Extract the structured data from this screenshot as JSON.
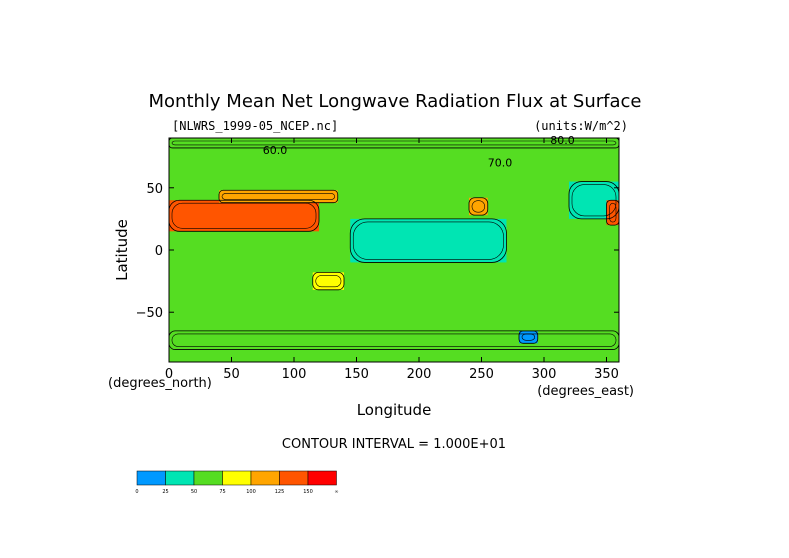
{
  "chart_data": {
    "type": "heatmap",
    "title": "Monthly Mean Net Longwave Radiation Flux at Surface",
    "file_label": "[NLWRS_1999-05_NCEP.nc]",
    "units_label": "(units:W/m^2)",
    "xlabel": "Longitude",
    "ylabel": "Latitude",
    "x_unit_label": "(degrees_east)",
    "y_unit_label": "(degrees_north)",
    "xlim": [
      0,
      360
    ],
    "ylim": [
      -90,
      90
    ],
    "x_ticks": [
      0,
      50,
      100,
      150,
      200,
      250,
      300,
      350
    ],
    "y_ticks": [
      50,
      0,
      -50
    ],
    "y_tick_labels": [
      "50",
      "0",
      "−50"
    ],
    "contour_note": "CONTOUR INTERVAL = 1.000E+01",
    "contour_labels": [
      "60.0",
      "80.0",
      "70.0"
    ],
    "colorbar": {
      "colors": [
        "#0099ff",
        "#00e5b3",
        "#55dd22",
        "#ffff00",
        "#ffa500",
        "#ff5500",
        "#ff0000"
      ],
      "labels": [
        "0",
        "25",
        "50",
        "75",
        "100",
        "125",
        "150",
        "∞"
      ]
    },
    "regions": [
      {
        "lon_min": 0,
        "lon_max": 360,
        "lat_min": -90,
        "lat_max": 90,
        "value": 55
      },
      {
        "lon_min": 145,
        "lon_max": 270,
        "lat_min": -10,
        "lat_max": 25,
        "value": 35
      },
      {
        "lon_min": 320,
        "lon_max": 360,
        "lat_min": 25,
        "lat_max": 55,
        "value": 35
      },
      {
        "lon_min": 0,
        "lon_max": 120,
        "lat_min": 15,
        "lat_max": 40,
        "value": 140
      },
      {
        "lon_min": 40,
        "lon_max": 135,
        "lat_min": 38,
        "lat_max": 48,
        "value": 110
      },
      {
        "lon_min": 115,
        "lon_max": 140,
        "lat_min": -32,
        "lat_max": -18,
        "value": 90
      },
      {
        "lon_min": 240,
        "lon_max": 255,
        "lat_min": 28,
        "lat_max": 42,
        "value": 100
      },
      {
        "lon_min": 350,
        "lon_max": 360,
        "lat_min": 20,
        "lat_max": 40,
        "value": 140
      },
      {
        "lon_min": 0,
        "lon_max": 360,
        "lat_min": -80,
        "lat_max": -65,
        "value": 70
      },
      {
        "lon_min": 280,
        "lon_max": 295,
        "lat_min": -75,
        "lat_max": -65,
        "value": 20
      },
      {
        "lon_min": 0,
        "lon_max": 360,
        "lat_min": 82,
        "lat_max": 90,
        "value": 60
      }
    ]
  }
}
